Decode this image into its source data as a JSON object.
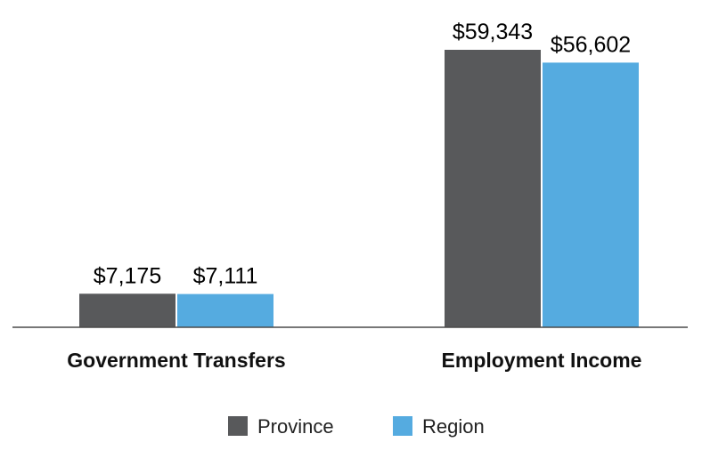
{
  "chart_data": {
    "type": "bar",
    "categories": [
      "Government Transfers",
      "Employment Income"
    ],
    "series": [
      {
        "name": "Province",
        "color": "#58595b",
        "values": [
          7175,
          59343
        ],
        "labels": [
          "$7,175",
          "$59,343"
        ]
      },
      {
        "name": "Region",
        "color": "#55abe0",
        "values": [
          7111,
          56602
        ],
        "labels": [
          "$7,111",
          "$56,602"
        ]
      }
    ],
    "title": "",
    "xlabel": "",
    "ylabel": "",
    "ylim": [
      0,
      59343
    ],
    "grid": false,
    "legend_position": "bottom-center"
  }
}
